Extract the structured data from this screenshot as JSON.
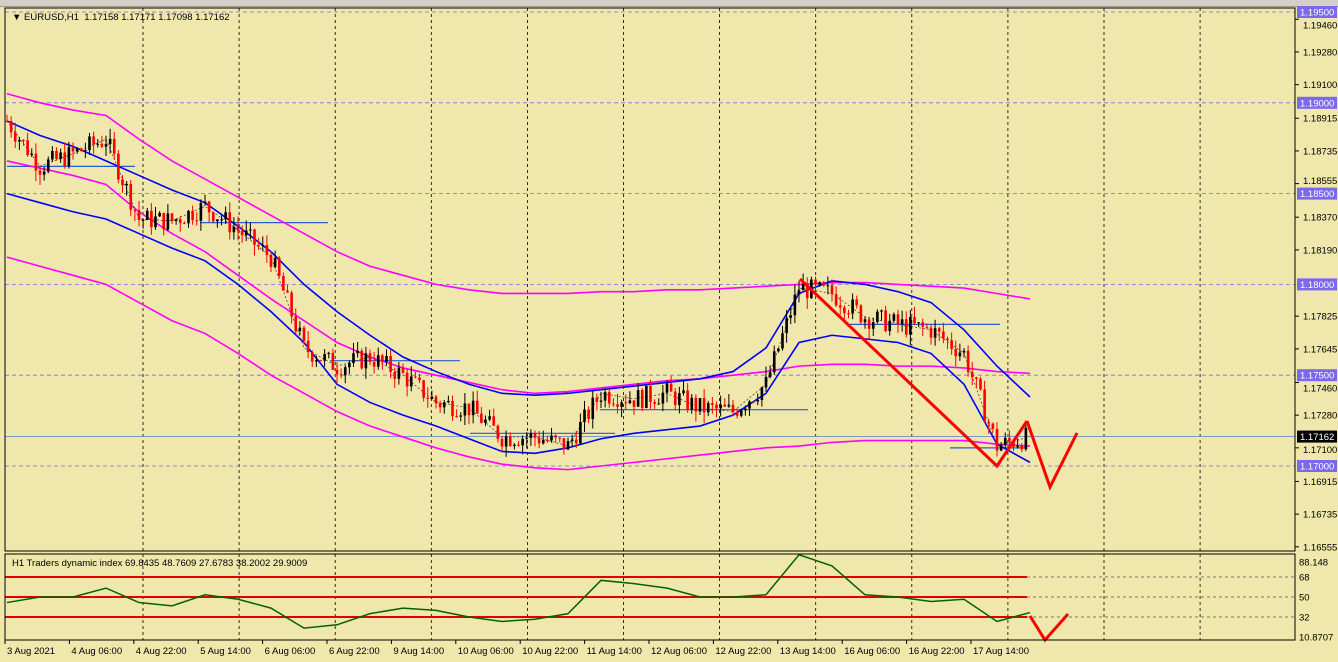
{
  "header": {
    "symbol_label": "EURUSD,H1",
    "ohlc": "1.17158 1.17171 1.17098 1.17162"
  },
  "indicator": {
    "label": "H1 Traders dynamic index 69.8435 48.7609 27.6783 38.2002 29.9009"
  },
  "colors": {
    "background": "#efe7ab",
    "bull_candle": "#000000",
    "bear_candle": "#ff0000",
    "inner_band": "#0000ff",
    "outer_band": "#ff00ff",
    "arrows": "#ff0000",
    "tdi_line": "#006400",
    "level_tag": "#7b68ee",
    "current_price_tag": "#000000"
  },
  "chart_data": {
    "type": "candlestick",
    "timeframe": "H1",
    "price_axis_ticks": [
      "1.19460",
      "1.19280",
      "1.19100",
      "1.18915",
      "1.18735",
      "1.18555",
      "1.18370",
      "1.18190",
      "1.17825",
      "1.17645",
      "1.17460",
      "1.17280",
      "1.17100",
      "1.16915",
      "1.16735",
      "1.16555"
    ],
    "price_ticks_values": [
      1.1946,
      1.1928,
      1.191,
      1.18915,
      1.18735,
      1.18555,
      1.1837,
      1.1819,
      1.17825,
      1.17645,
      1.1746,
      1.1728,
      1.171,
      1.16915,
      1.16735,
      1.16555
    ],
    "level_lines": [
      "1.19500",
      "1.19000",
      "1.18500",
      "1.18000",
      "1.17500",
      "1.17000"
    ],
    "level_values": [
      1.195,
      1.19,
      1.185,
      1.18,
      1.175,
      1.17
    ],
    "current_price": "1.17162",
    "current_price_value": 1.17162,
    "time_labels": [
      "3 Aug 2021",
      "4 Aug 06:00",
      "4 Aug 22:00",
      "5 Aug 14:00",
      "6 Aug 06:00",
      "6 Aug 22:00",
      "9 Aug 14:00",
      "10 Aug 06:00",
      "10 Aug 22:00",
      "11 Aug 14:00",
      "12 Aug 06:00",
      "12 Aug 22:00",
      "13 Aug 14:00",
      "16 Aug 06:00",
      "16 Aug 22:00",
      "17 Aug 14:00"
    ],
    "sample_every_bars": 8,
    "close": [
      1.189,
      1.1865,
      1.1872,
      1.188,
      1.1836,
      1.1835,
      1.1843,
      1.183,
      1.1815,
      1.1765,
      1.1755,
      1.176,
      1.175,
      1.1735,
      1.1732,
      1.1716,
      1.1716,
      1.1711,
      1.174,
      1.1737,
      1.174,
      1.1732,
      1.173,
      1.1745,
      1.1798,
      1.1795,
      1.1782,
      1.1778,
      1.1775,
      1.1762,
      1.1711,
      1.17162
    ],
    "inner_band_upper": [
      1.189,
      1.1882,
      1.1876,
      1.1868,
      1.186,
      1.1852,
      1.1845,
      1.1832,
      1.1818,
      1.18,
      1.1785,
      1.1772,
      1.176,
      1.1752,
      1.1745,
      1.174,
      1.1739,
      1.174,
      1.1742,
      1.1744,
      1.1746,
      1.1748,
      1.1752,
      1.1765,
      1.1795,
      1.1802,
      1.18,
      1.1796,
      1.179,
      1.1775,
      1.1755,
      1.1738
    ],
    "inner_band_lower": [
      1.185,
      1.1845,
      1.184,
      1.1836,
      1.1828,
      1.182,
      1.1813,
      1.18,
      1.1785,
      1.1768,
      1.1745,
      1.1735,
      1.1728,
      1.1722,
      1.1715,
      1.1708,
      1.1707,
      1.171,
      1.1715,
      1.1718,
      1.172,
      1.1722,
      1.1728,
      1.174,
      1.1768,
      1.1772,
      1.177,
      1.1768,
      1.1762,
      1.1745,
      1.1712,
      1.1702
    ],
    "outer_band_upper": [
      1.1905,
      1.19,
      1.1896,
      1.1893,
      1.188,
      1.1868,
      1.1858,
      1.1848,
      1.1838,
      1.1828,
      1.1818,
      1.181,
      1.1805,
      1.18,
      1.1797,
      1.1795,
      1.1795,
      1.1795,
      1.1796,
      1.1796,
      1.1797,
      1.1797,
      1.1798,
      1.1799,
      1.18,
      1.1801,
      1.1801,
      1.18,
      1.1799,
      1.1798,
      1.1795,
      1.1792
    ],
    "outer_band_mid": [
      1.1868,
      1.1864,
      1.186,
      1.1855,
      1.184,
      1.1828,
      1.1818,
      1.1805,
      1.1792,
      1.178,
      1.1768,
      1.176,
      1.1754,
      1.175,
      1.1746,
      1.1742,
      1.174,
      1.1741,
      1.1743,
      1.1745,
      1.1747,
      1.1748,
      1.175,
      1.1752,
      1.1755,
      1.1756,
      1.1756,
      1.1755,
      1.1755,
      1.1754,
      1.1752,
      1.1751
    ],
    "outer_band_lower": [
      1.1815,
      1.181,
      1.1805,
      1.18,
      1.179,
      1.178,
      1.1773,
      1.1762,
      1.175,
      1.174,
      1.173,
      1.1722,
      1.1716,
      1.171,
      1.1705,
      1.1701,
      1.1699,
      1.1698,
      1.17,
      1.1702,
      1.1704,
      1.1706,
      1.1708,
      1.171,
      1.1711,
      1.1713,
      1.1714,
      1.1714,
      1.1714,
      1.1714,
      1.1712,
      1.1711
    ],
    "indicator_axis_ticks": [
      "88.148",
      "68",
      "50",
      "32",
      "10.8707"
    ],
    "indicator_levels": [
      68,
      50,
      32
    ],
    "tdi_line": [
      45,
      50,
      50,
      58,
      45,
      42,
      52,
      48,
      40,
      22,
      25,
      35,
      40,
      38,
      32,
      28,
      30,
      35,
      65,
      62,
      58,
      50,
      50,
      52,
      88,
      78,
      52,
      50,
      46,
      48,
      28,
      36
    ]
  }
}
